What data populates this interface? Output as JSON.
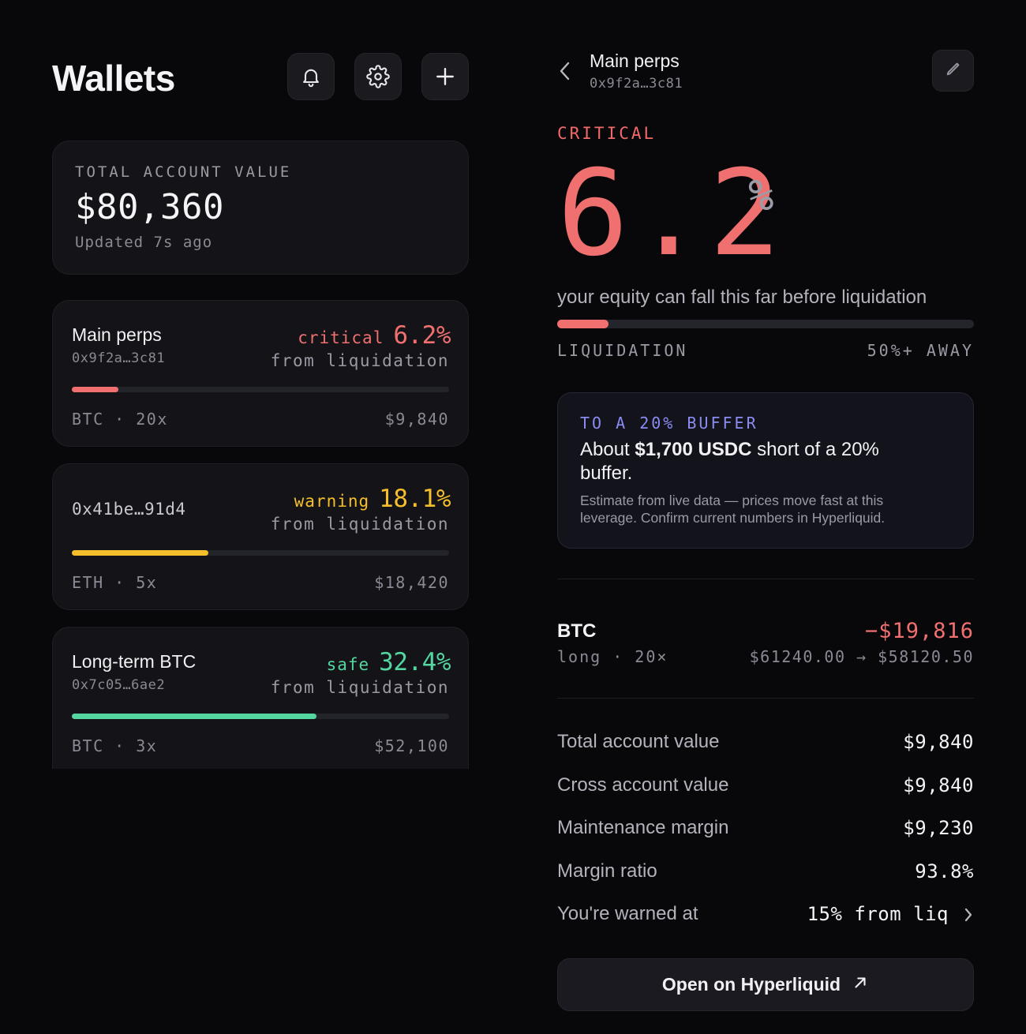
{
  "colors": {
    "critical": "#f07070",
    "warning": "#f5bf2b",
    "safe": "#54d6a0",
    "accent": "#8b8cf3"
  },
  "left": {
    "title": "Wallets",
    "header_icons": [
      "bell-icon",
      "gear-icon",
      "plus-icon"
    ],
    "total": {
      "label": "TOTAL ACCOUNT VALUE",
      "value": "$80,360",
      "updated": "Updated 7s ago"
    },
    "wallets": [
      {
        "name": "Main perps",
        "address": "0x9f2a…3c81",
        "status": "critical",
        "pct": "6.2%",
        "pct_value": 6.2,
        "from": "from liquidation",
        "asset": "BTC · 20x",
        "amount": "$9,840",
        "color": "#f07070"
      },
      {
        "name": "",
        "address": "0x41be…91d4",
        "status": "warning",
        "pct": "18.1%",
        "pct_value": 18.1,
        "from": "from liquidation",
        "asset": "ETH · 5x",
        "amount": "$18,420",
        "color": "#f5bf2b"
      },
      {
        "name": "Long-term BTC",
        "address": "0x7c05…6ae2",
        "status": "safe",
        "pct": "32.4%",
        "pct_value": 32.4,
        "from": "from liquidation",
        "asset": "BTC · 3x",
        "amount": "$52,100",
        "color": "#54d6a0"
      }
    ]
  },
  "detail": {
    "title": "Main perps",
    "address": "0x9f2a…3c81",
    "status_label": "CRITICAL",
    "big_value": "6.2",
    "big_unit": "%",
    "caption": "your equity can fall this far before liquidation",
    "bar_pct_value": 6.2,
    "bar_scale_max": 50,
    "liq_left": "LIQUIDATION",
    "liq_right": "50%+ AWAY",
    "buffer": {
      "label": "TO A 20% BUFFER",
      "main_prefix": "About ",
      "main_bold": "$1,700 USDC",
      "main_suffix": " short of a 20% buffer.",
      "note": "Estimate from live data — prices move fast at this leverage. Confirm current numbers in Hyperliquid."
    },
    "position": {
      "symbol": "BTC",
      "side": "long · 20×",
      "pnl": "−$19,816",
      "prices": "$61240.00 → $58120.50"
    },
    "stats": [
      {
        "label": "Total account value",
        "value": "$9,840"
      },
      {
        "label": "Cross account value",
        "value": "$9,840"
      },
      {
        "label": "Maintenance margin",
        "value": "$9,230"
      },
      {
        "label": "Margin ratio",
        "value": "93.8%"
      }
    ],
    "warn": {
      "label": "You're warned at",
      "value": "15% from liq"
    },
    "open_button": "Open on Hyperliquid"
  }
}
